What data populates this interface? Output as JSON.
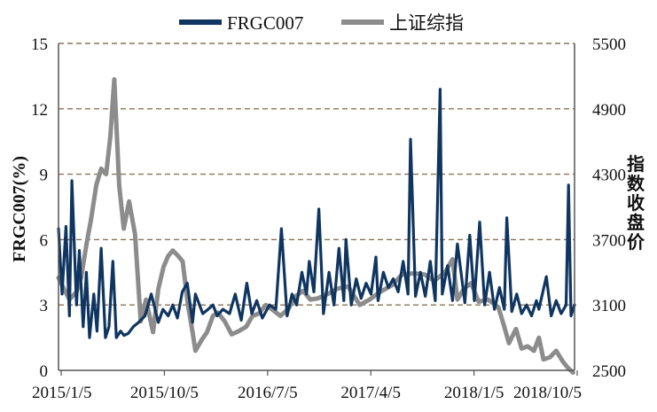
{
  "chart_data": {
    "type": "line",
    "xlabel": "",
    "ylabel": "FRGC007(%)",
    "y2label": "指数收盘价",
    "x_tick_labels": [
      "2015/1/5",
      "2015/10/5",
      "2016/7/5",
      "2017/4/5",
      "2018/1/5",
      "2018/10/5"
    ],
    "x_range": [
      "2015-01-05",
      "2019-01-07"
    ],
    "ylim": [
      0,
      15
    ],
    "yticks": [
      0,
      3,
      6,
      9,
      12,
      15
    ],
    "y2lim": [
      2500,
      5500
    ],
    "y2ticks": [
      2500,
      3100,
      3700,
      4300,
      4900,
      5500
    ],
    "grid": "horizontal dashed",
    "legend_position": "top",
    "series": [
      {
        "name": "FRGC007",
        "axis": "left",
        "color": "#0f3560",
        "x": [
          "2015-01-05",
          "2015-01-15",
          "2015-01-26",
          "2015-02-05",
          "2015-02-12",
          "2015-02-25",
          "2015-03-05",
          "2015-03-16",
          "2015-03-25",
          "2015-04-03",
          "2015-04-15",
          "2015-04-24",
          "2015-05-06",
          "2015-05-18",
          "2015-05-28",
          "2015-06-08",
          "2015-06-18",
          "2015-06-30",
          "2015-07-10",
          "2015-07-22",
          "2015-08-05",
          "2015-08-20",
          "2015-09-07",
          "2015-09-25",
          "2015-10-15",
          "2015-10-28",
          "2015-11-12",
          "2015-11-25",
          "2015-12-08",
          "2015-12-22",
          "2016-01-05",
          "2016-01-20",
          "2016-01-28",
          "2016-02-18",
          "2016-03-04",
          "2016-03-18",
          "2016-03-30",
          "2016-04-15",
          "2016-05-04",
          "2016-05-20",
          "2016-06-06",
          "2016-06-22",
          "2016-07-06",
          "2016-07-20",
          "2016-08-05",
          "2016-08-25",
          "2016-09-12",
          "2016-09-28",
          "2016-10-14",
          "2016-10-28",
          "2016-11-10",
          "2016-11-25",
          "2016-12-08",
          "2016-12-16",
          "2016-12-29",
          "2017-01-12",
          "2017-01-25",
          "2017-02-10",
          "2017-02-24",
          "2017-03-10",
          "2017-03-24",
          "2017-03-30",
          "2017-04-14",
          "2017-04-28",
          "2017-05-12",
          "2017-05-26",
          "2017-06-09",
          "2017-06-23",
          "2017-06-29",
          "2017-07-14",
          "2017-07-28",
          "2017-08-11",
          "2017-08-25",
          "2017-09-08",
          "2017-09-22",
          "2017-09-29",
          "2017-10-13",
          "2017-10-27",
          "2017-11-10",
          "2017-11-24",
          "2017-12-08",
          "2017-12-22",
          "2017-12-28",
          "2018-01-12",
          "2018-01-26",
          "2018-02-09",
          "2018-03-02",
          "2018-03-16",
          "2018-03-29",
          "2018-04-13",
          "2018-04-27",
          "2018-05-11",
          "2018-05-25",
          "2018-06-08",
          "2018-06-22",
          "2018-06-29",
          "2018-07-13",
          "2018-07-27",
          "2018-08-10",
          "2018-08-24",
          "2018-09-07",
          "2018-09-21",
          "2018-09-28",
          "2018-10-19",
          "2018-11-02",
          "2018-11-16",
          "2018-11-30",
          "2018-12-14",
          "2018-12-21",
          "2018-12-28",
          "2019-01-07"
        ],
        "values": [
          6.5,
          3.5,
          6.6,
          2.5,
          8.7,
          3.0,
          5.5,
          2.0,
          4.5,
          1.5,
          3.5,
          1.8,
          5.6,
          1.5,
          2.0,
          5.0,
          1.5,
          1.8,
          1.6,
          1.7,
          2.0,
          2.2,
          2.5,
          3.5,
          2.2,
          2.8,
          2.5,
          3.0,
          2.4,
          3.6,
          4.0,
          2.2,
          3.5,
          2.6,
          2.8,
          3.0,
          2.5,
          2.8,
          2.6,
          3.5,
          2.3,
          4.0,
          2.6,
          3.2,
          2.4,
          3.0,
          2.8,
          6.5,
          2.5,
          3.5,
          3.0,
          4.5,
          3.5,
          5.0,
          3.6,
          7.4,
          2.6,
          4.5,
          3.0,
          5.6,
          3.2,
          6.0,
          3.0,
          4.2,
          3.3,
          4.0,
          3.5,
          5.2,
          3.2,
          4.5,
          3.8,
          4.2,
          3.6,
          5.0,
          3.5,
          10.6,
          3.4,
          4.5,
          3.4,
          5.0,
          3.2,
          12.9,
          3.5,
          4.8,
          3.2,
          5.8,
          3.1,
          6.2,
          3.2,
          6.8,
          3.0,
          4.5,
          2.8,
          3.8,
          2.8,
          7.0,
          2.7,
          3.5,
          2.6,
          3.0,
          2.5,
          3.2,
          2.8,
          4.3,
          2.5,
          3.2,
          2.6,
          3.0,
          8.5,
          2.5,
          3.0
        ]
      },
      {
        "name": "上证综指",
        "axis": "right",
        "color": "#8c8c8c",
        "x": [
          "2015-01-05",
          "2015-01-20",
          "2015-02-05",
          "2015-02-25",
          "2015-03-10",
          "2015-03-25",
          "2015-04-08",
          "2015-04-22",
          "2015-05-06",
          "2015-05-20",
          "2015-06-01",
          "2015-06-12",
          "2015-06-26",
          "2015-07-09",
          "2015-07-24",
          "2015-08-10",
          "2015-08-26",
          "2015-09-10",
          "2015-09-30",
          "2015-10-15",
          "2015-10-30",
          "2015-11-12",
          "2015-11-25",
          "2015-12-10",
          "2015-12-23",
          "2016-01-07",
          "2016-01-20",
          "2016-01-28",
          "2016-02-15",
          "2016-03-01",
          "2016-03-18",
          "2016-04-01",
          "2016-04-20",
          "2016-05-10",
          "2016-05-30",
          "2016-06-20",
          "2016-07-08",
          "2016-07-25",
          "2016-08-15",
          "2016-09-05",
          "2016-09-25",
          "2016-10-17",
          "2016-11-07",
          "2016-11-28",
          "2016-12-19",
          "2017-01-09",
          "2017-02-06",
          "2017-03-06",
          "2017-04-05",
          "2017-05-08",
          "2017-06-05",
          "2017-07-05",
          "2017-08-07",
          "2017-09-05",
          "2017-10-09",
          "2017-11-08",
          "2017-12-05",
          "2018-01-05",
          "2018-01-26",
          "2018-02-09",
          "2018-02-28",
          "2018-03-20",
          "2018-04-10",
          "2018-05-07",
          "2018-06-05",
          "2018-06-22",
          "2018-07-05",
          "2018-07-25",
          "2018-08-10",
          "2018-08-27",
          "2018-09-14",
          "2018-09-28",
          "2018-10-11",
          "2018-10-29",
          "2018-11-16",
          "2018-12-05",
          "2018-12-20",
          "2019-01-03"
        ],
        "values": [
          3350,
          3250,
          3150,
          3220,
          3350,
          3650,
          3900,
          4200,
          4350,
          4300,
          4650,
          5170,
          4200,
          3800,
          4050,
          3750,
          2950,
          3150,
          2850,
          3250,
          3450,
          3550,
          3600,
          3550,
          3500,
          3100,
          2850,
          2680,
          2780,
          2850,
          3000,
          3030,
          2950,
          2830,
          2860,
          2900,
          3000,
          3020,
          3100,
          3050,
          3000,
          3060,
          3180,
          3230,
          3150,
          3160,
          3200,
          3250,
          3270,
          3100,
          3150,
          3220,
          3280,
          3380,
          3390,
          3380,
          3320,
          3400,
          3520,
          3150,
          3250,
          3300,
          3130,
          3150,
          3080,
          2900,
          2750,
          2880,
          2700,
          2720,
          2680,
          2800,
          2600,
          2620,
          2680,
          2580,
          2520,
          2480
        ]
      }
    ]
  }
}
